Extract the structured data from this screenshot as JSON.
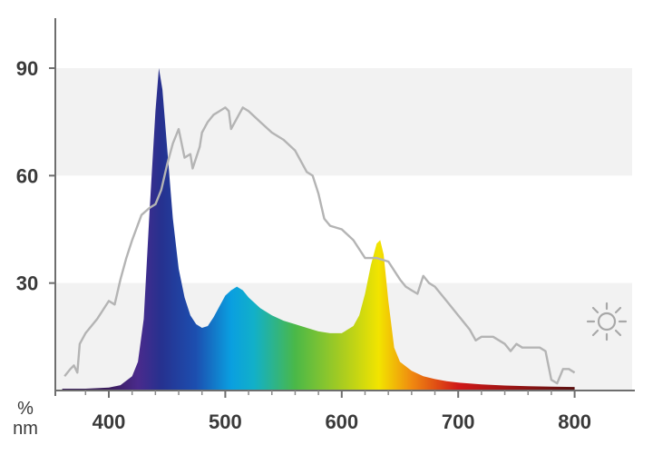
{
  "chart_data": {
    "type": "area",
    "xlabel": "nm",
    "ylabel": "%",
    "xlim": [
      360,
      800
    ],
    "ylim": [
      0,
      105
    ],
    "x_ticks": [
      400,
      500,
      600,
      700,
      800
    ],
    "y_ticks": [
      30,
      60,
      90
    ],
    "grid": "alternating horizontal bands",
    "series": [
      {
        "kind": "filled-spectrum",
        "x": [
          360,
          380,
          400,
          410,
          420,
          425,
          430,
          435,
          440,
          443,
          446,
          450,
          455,
          460,
          465,
          470,
          475,
          480,
          485,
          490,
          495,
          500,
          505,
          510,
          515,
          520,
          530,
          540,
          550,
          560,
          570,
          580,
          590,
          600,
          610,
          615,
          620,
          625,
          630,
          633,
          636,
          640,
          645,
          650,
          660,
          670,
          680,
          690,
          700,
          720,
          740,
          760,
          780,
          800
        ],
        "values": [
          0.5,
          0.5,
          0.8,
          1.5,
          4,
          8,
          20,
          50,
          78,
          90,
          84,
          68,
          48,
          34,
          26,
          21,
          18.5,
          17.5,
          18,
          20.5,
          23.5,
          26.5,
          28,
          29,
          28,
          26,
          23,
          21,
          19.5,
          18.5,
          17.5,
          16.5,
          16,
          16,
          18,
          21,
          27,
          35,
          41,
          42,
          38,
          25,
          12,
          8,
          5.5,
          4,
          3.2,
          2.6,
          2.2,
          1.7,
          1.4,
          1.2,
          1.1,
          1.0
        ],
        "colors": {
          "start": "#3a1c5c",
          "violet": "#4a2a8c",
          "deep-blue": "#26318f",
          "blue": "#1c4fb0",
          "sky-blue": "#0a9fe0",
          "cyan": "#12b0c8",
          "green": "#4ab848",
          "yellow-green": "#a8cc20",
          "yellow": "#f2e400",
          "orange": "#f08a10",
          "red": "#d01818",
          "end": "#5a1010"
        }
      },
      {
        "kind": "reference-line",
        "icon": "sun-icon",
        "color": "#b4b4b4",
        "x": [
          362,
          367,
          370,
          373,
          375,
          380,
          390,
          400,
          405,
          410,
          415,
          420,
          428,
          435,
          440,
          445,
          450,
          455,
          460,
          465,
          470,
          472,
          475,
          478,
          480,
          485,
          490,
          495,
          500,
          503,
          505,
          510,
          515,
          520,
          530,
          540,
          550,
          560,
          570,
          575,
          580,
          585,
          590,
          600,
          610,
          620,
          630,
          640,
          650,
          655,
          660,
          665,
          670,
          675,
          680,
          690,
          700,
          710,
          715,
          720,
          730,
          740,
          745,
          750,
          755,
          760,
          765,
          770,
          775,
          780,
          785,
          790,
          795,
          800
        ],
        "values": [
          4,
          6,
          7,
          5,
          13,
          16,
          20,
          25,
          24,
          31,
          37,
          42,
          49,
          51,
          52,
          56,
          63,
          69,
          73,
          65,
          66,
          62,
          65,
          68,
          72,
          75,
          77,
          78,
          79,
          78,
          73,
          76,
          79,
          78,
          75,
          72,
          70,
          67,
          61,
          60,
          55,
          48,
          46,
          45,
          42,
          37,
          37,
          36,
          31,
          29,
          28,
          27,
          32,
          30,
          29,
          25,
          21,
          17,
          14,
          15,
          15,
          13,
          11,
          13,
          12,
          12,
          12,
          12,
          11,
          3,
          2,
          6,
          6,
          5
        ]
      }
    ]
  }
}
